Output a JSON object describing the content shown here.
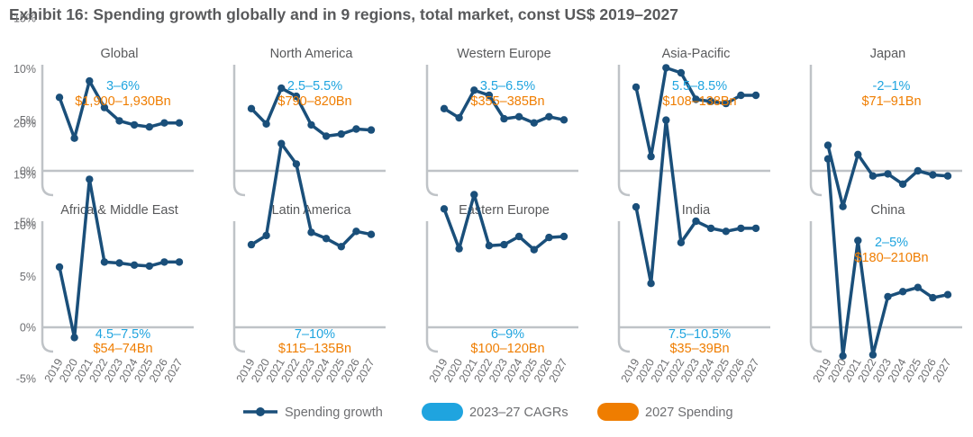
{
  "title": "Exhibit 16: Spending growth globally and in 9 regions, total market, const US$ 2019–2027",
  "colors": {
    "series": "#1a4f7a",
    "cagr": "#1fa4df",
    "spending": "#ef7d00",
    "axis": "#bfc3c7",
    "text": "#58595b"
  },
  "legend": {
    "growth": "Spending growth",
    "cagr": "2023–27 CAGRs",
    "spending": "2027 Spending"
  },
  "chart_data": [
    {
      "type": "line",
      "title": "Global",
      "cagr": "3–6%",
      "spending": "$1,900–1,930Bn",
      "annotation_position": "top",
      "x": [
        "2019",
        "2020",
        "2021",
        "2022",
        "2023",
        "2024",
        "2025",
        "2026",
        "2027"
      ],
      "values": [
        7.2,
        3.2,
        8.8,
        6.2,
        4.9,
        4.5,
        4.3,
        4.7,
        4.7
      ],
      "yticks": [
        "20%",
        "15%",
        "10%",
        "5%",
        "0%",
        "-5%"
      ],
      "ylim": [
        -5,
        20
      ]
    },
    {
      "type": "line",
      "title": "North America",
      "cagr": "2.5–5.5%",
      "spending": "$790–820Bn",
      "annotation_position": "top",
      "x": [
        "2019",
        "2020",
        "2021",
        "2022",
        "2023",
        "2024",
        "2025",
        "2026",
        "2027"
      ],
      "values": [
        6.1,
        4.6,
        8.1,
        7.3,
        4.5,
        3.4,
        3.6,
        4.1,
        4.0
      ],
      "ylim": [
        -5,
        20
      ]
    },
    {
      "type": "line",
      "title": "Western Europe",
      "cagr": "3.5–6.5%",
      "spending": "$355–385Bn",
      "annotation_position": "top",
      "x": [
        "2019",
        "2020",
        "2021",
        "2022",
        "2023",
        "2024",
        "2025",
        "2026",
        "2027"
      ],
      "values": [
        6.1,
        5.2,
        7.9,
        7.4,
        5.1,
        5.3,
        4.7,
        5.3,
        5.0
      ],
      "ylim": [
        -5,
        20
      ]
    },
    {
      "type": "line",
      "title": "Asia-Pacific",
      "cagr": "5.5–8.5%",
      "spending": "$108–138Bn",
      "annotation_position": "top",
      "x": [
        "2019",
        "2020",
        "2021",
        "2022",
        "2023",
        "2024",
        "2025",
        "2026",
        "2027"
      ],
      "values": [
        8.2,
        1.4,
        10.1,
        9.6,
        7.0,
        6.8,
        6.6,
        7.4,
        7.4
      ],
      "ylim": [
        -5,
        20
      ]
    },
    {
      "type": "line",
      "title": "Japan",
      "cagr": "-2–1%",
      "spending": "$71–91Bn",
      "annotation_position": "top",
      "x": [
        "2019",
        "2020",
        "2021",
        "2022",
        "2023",
        "2024",
        "2025",
        "2026",
        "2027"
      ],
      "values": [
        2.5,
        -3.5,
        1.6,
        -0.5,
        -0.3,
        -1.3,
        0.0,
        -0.4,
        -0.5
      ],
      "ylim": [
        -5,
        20
      ]
    },
    {
      "type": "line",
      "title": "Africa & Middle East",
      "cagr": "4.5–7.5%",
      "spending": "$54–74Bn",
      "annotation_position": "bottom",
      "x": [
        "2019",
        "2020",
        "2021",
        "2022",
        "2023",
        "2024",
        "2025",
        "2026",
        "2027"
      ],
      "values": [
        5.9,
        -1.0,
        14.5,
        6.4,
        6.3,
        6.1,
        6.0,
        6.4,
        6.4
      ],
      "yticks": [
        "20%",
        "15%",
        "10%",
        "5%",
        "0%",
        "-5%"
      ],
      "ylim": [
        -5,
        20
      ]
    },
    {
      "type": "line",
      "title": "Latin America",
      "cagr": "7–10%",
      "spending": "$115–135Bn",
      "annotation_position": "bottom",
      "x": [
        "2019",
        "2020",
        "2021",
        "2022",
        "2023",
        "2024",
        "2025",
        "2026",
        "2027"
      ],
      "values": [
        8.1,
        9.0,
        18.0,
        16.0,
        9.3,
        8.7,
        7.9,
        9.4,
        9.1
      ],
      "ylim": [
        -5,
        20
      ]
    },
    {
      "type": "line",
      "title": "Eastern Europe",
      "cagr": "6–9%",
      "spending": "$100–120Bn",
      "annotation_position": "bottom",
      "x": [
        "2019",
        "2020",
        "2021",
        "2022",
        "2023",
        "2024",
        "2025",
        "2026",
        "2027"
      ],
      "values": [
        11.6,
        7.7,
        13.0,
        8.0,
        8.1,
        8.9,
        7.6,
        8.8,
        8.9
      ],
      "ylim": [
        -5,
        20
      ]
    },
    {
      "type": "line",
      "title": "India",
      "cagr": "7.5–10.5%",
      "spending": "$35–39Bn",
      "annotation_position": "bottom",
      "x": [
        "2019",
        "2020",
        "2021",
        "2022",
        "2023",
        "2024",
        "2025",
        "2026",
        "2027"
      ],
      "values": [
        11.8,
        4.3,
        20.3,
        8.3,
        10.4,
        9.7,
        9.4,
        9.7,
        9.7
      ],
      "ylim": [
        -5,
        20
      ]
    },
    {
      "type": "line",
      "title": "China",
      "cagr": "2–5%",
      "spending": "$180–210Bn",
      "annotation_position": "top",
      "x": [
        "2019",
        "2020",
        "2021",
        "2022",
        "2023",
        "2024",
        "2025",
        "2026",
        "2027"
      ],
      "values": [
        16.5,
        -2.8,
        8.5,
        -2.7,
        3.0,
        3.5,
        3.9,
        2.9,
        3.2
      ],
      "ylim": [
        -5,
        20
      ]
    }
  ]
}
